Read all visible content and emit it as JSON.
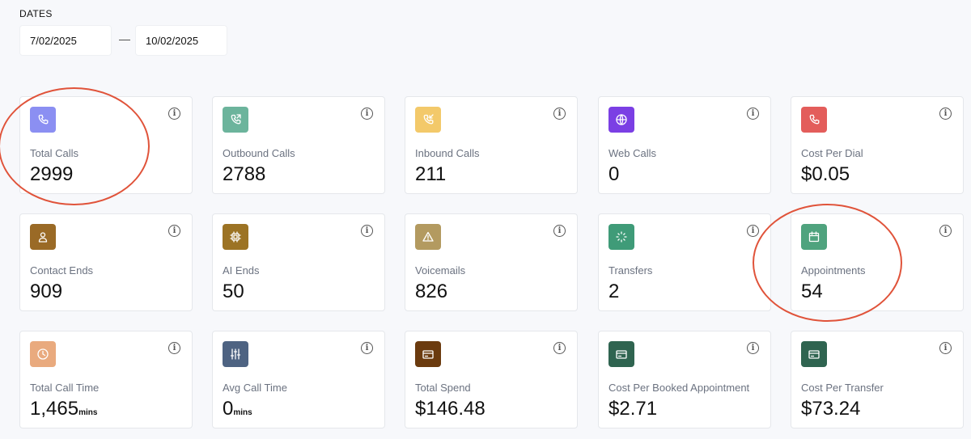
{
  "dates": {
    "label": "DATES",
    "start": "7/02/2025",
    "separator": "—",
    "end": "10/02/2025"
  },
  "info_glyph": "i",
  "cards": [
    {
      "label": "Total Calls",
      "value": "2999",
      "unit": "",
      "icon": "phone-icon",
      "color": "#8b8ff2"
    },
    {
      "label": "Outbound Calls",
      "value": "2788",
      "unit": "",
      "icon": "phone-outgoing-icon",
      "color": "#6cb49c"
    },
    {
      "label": "Inbound Calls",
      "value": "211",
      "unit": "",
      "icon": "phone-incoming-icon",
      "color": "#f3c96a"
    },
    {
      "label": "Web Calls",
      "value": "0",
      "unit": "",
      "icon": "globe-icon",
      "color": "#7b3fe4"
    },
    {
      "label": "Cost Per Dial",
      "value": "$0.05",
      "unit": "",
      "icon": "phone-icon",
      "color": "#e35d5b"
    },
    {
      "label": "Contact Ends",
      "value": "909",
      "unit": "",
      "icon": "user-icon",
      "color": "#9a6a26"
    },
    {
      "label": "AI Ends",
      "value": "50",
      "unit": "",
      "icon": "cpu-icon",
      "color": "#9c7324"
    },
    {
      "label": "Voicemails",
      "value": "826",
      "unit": "",
      "icon": "warning-icon",
      "color": "#b39a60"
    },
    {
      "label": "Transfers",
      "value": "2",
      "unit": "",
      "icon": "transfer-icon",
      "color": "#3f9b78"
    },
    {
      "label": "Appointments",
      "value": "54",
      "unit": "",
      "icon": "calendar-icon",
      "color": "#4fa37e"
    },
    {
      "label": "Total Call Time",
      "value": "1,465",
      "unit": "mins",
      "icon": "clock-icon",
      "color": "#e9aa7e"
    },
    {
      "label": "Avg Call Time",
      "value": "0",
      "unit": "mins",
      "icon": "sliders-icon",
      "color": "#4e6382"
    },
    {
      "label": "Total Spend",
      "value": "$146.48",
      "unit": "",
      "icon": "credit-card-icon",
      "color": "#6b3b0f"
    },
    {
      "label": "Cost Per Booked Appointment",
      "value": "$2.71",
      "unit": "",
      "icon": "credit-card-icon",
      "color": "#2f6450"
    },
    {
      "label": "Cost Per Transfer",
      "value": "$73.24",
      "unit": "",
      "icon": "credit-card-icon",
      "color": "#2f6450"
    }
  ],
  "annotation_color": "#e0533a"
}
